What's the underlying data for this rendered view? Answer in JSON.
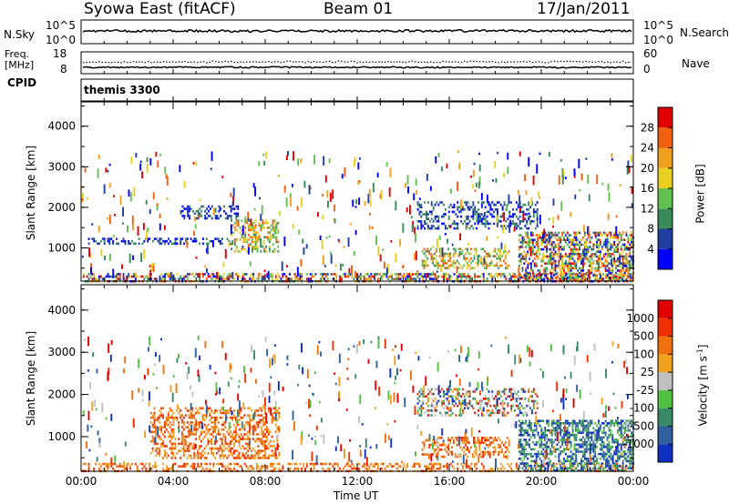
{
  "header": {
    "station": "Syowa East (fitACF)",
    "beam": "Beam 01",
    "date": "17/Jan/2011"
  },
  "nsky_panel": {
    "left_label": "N.Sky",
    "right_label": "N.Search",
    "left_ticks": [
      "10^5",
      "10^0"
    ],
    "right_ticks": [
      "10^5",
      "10^0"
    ]
  },
  "freq_panel": {
    "left_label_1": "Freq.",
    "left_label_2": "[MHz]",
    "right_label": "Nave",
    "left_ticks": [
      "18",
      "8"
    ],
    "right_ticks": [
      "60",
      "0"
    ]
  },
  "cpid": {
    "label": "CPID",
    "program": "themis 3300"
  },
  "chart_data": [
    {
      "type": "heatmap",
      "name": "power",
      "ylabel": "Slant Range [km]",
      "xlabel": "Time UT",
      "ylim": [
        180,
        4600
      ],
      "xlim": [
        0,
        24
      ],
      "y_ticks": [
        "1000",
        "2000",
        "3000",
        "4000"
      ],
      "x_ticks": [
        "00:00",
        "04:00",
        "08:00",
        "12:00",
        "16:00",
        "20:00",
        "00:00"
      ],
      "colorbar": {
        "label": "Power [dB]",
        "ticks": [
          "4",
          "8",
          "12",
          "16",
          "20",
          "24",
          "28"
        ],
        "colors": [
          "#0000ff",
          "#1f3fa0",
          "#3a8a5a",
          "#60c050",
          "#e8d020",
          "#f0a020",
          "#f06010",
          "#e00000"
        ]
      },
      "echo_regions": [
        {
          "t0": 0.0,
          "t1": 24.0,
          "r0": 180,
          "r1": 380,
          "level": "high"
        },
        {
          "t0": 6.5,
          "t1": 8.6,
          "r0": 900,
          "r1": 1700,
          "level": "medium"
        },
        {
          "t0": 4.3,
          "t1": 6.8,
          "r0": 1750,
          "r1": 2050,
          "level": "low"
        },
        {
          "t0": 14.6,
          "t1": 19.8,
          "r0": 1500,
          "r1": 2150,
          "level": "low"
        },
        {
          "t0": 14.8,
          "t1": 18.6,
          "r0": 500,
          "r1": 1000,
          "level": "medium"
        },
        {
          "t0": 19.0,
          "t1": 24.0,
          "r0": 180,
          "r1": 1400,
          "level": "high"
        },
        {
          "t0": 0.3,
          "t1": 6.6,
          "r0": 1100,
          "r1": 1250,
          "level": "low"
        }
      ]
    },
    {
      "type": "heatmap",
      "name": "velocity",
      "ylabel": "Slant Range [km]",
      "xlabel": "Time UT",
      "ylim": [
        180,
        4600
      ],
      "xlim": [
        0,
        24
      ],
      "y_ticks": [
        "1000",
        "2000",
        "3000",
        "4000"
      ],
      "x_ticks": [
        "00:00",
        "04:00",
        "08:00",
        "12:00",
        "16:00",
        "20:00",
        "00:00"
      ],
      "colorbar": {
        "label": "Velocity [m s",
        "label_sup": "-1",
        "label_end": "]",
        "ticks": [
          "1000",
          "500",
          "100",
          "25",
          "-25",
          "-100",
          "-500",
          "-1000"
        ],
        "colors": [
          "#1030c0",
          "#3060a0",
          "#3a8a6a",
          "#50c040",
          "#c0c0c0",
          "#f0a020",
          "#f07010",
          "#f03000",
          "#e00000"
        ]
      },
      "echo_regions": [
        {
          "t0": 0.0,
          "t1": 24.0,
          "r0": 180,
          "r1": 380,
          "level": "toward"
        },
        {
          "t0": 3.0,
          "t1": 8.6,
          "r0": 500,
          "r1": 1700,
          "level": "toward"
        },
        {
          "t0": 14.6,
          "t1": 19.8,
          "r0": 1500,
          "r1": 2150,
          "level": "mixed"
        },
        {
          "t0": 14.8,
          "t1": 18.6,
          "r0": 500,
          "r1": 1000,
          "level": "toward"
        },
        {
          "t0": 19.0,
          "t1": 24.0,
          "r0": 180,
          "r1": 1400,
          "level": "away"
        }
      ]
    }
  ]
}
